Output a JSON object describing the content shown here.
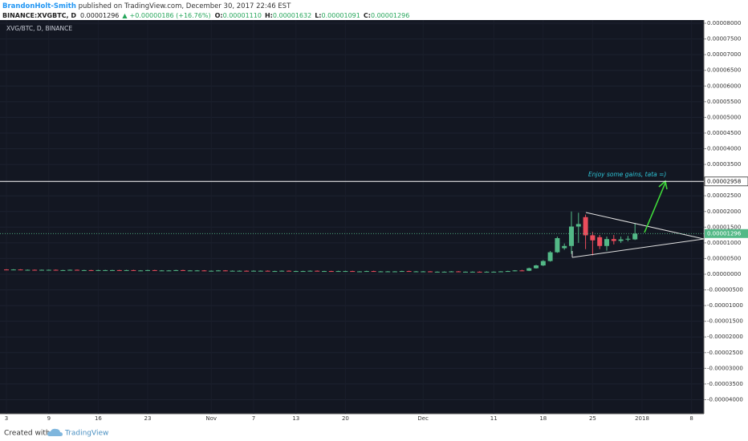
{
  "chart_data": {
    "type": "candlestick",
    "header": {
      "author": "BrandonHolt-Smith",
      "published": " published on TradingView.com, December 30, 2017 22:46 EST",
      "symbol": "BINANCE:XVGBTC, D",
      "price": "0.00001296",
      "change": "+0.00000186 (+16.76%)",
      "open_label": "O:",
      "open": "0.00001110",
      "high_label": "H:",
      "high": "0.00001632",
      "low_label": "L:",
      "low": "0.00001091",
      "close_label": "C:",
      "close": "0.00001296"
    },
    "legend": "XVG/BTC, D, BINANCE",
    "annotation": "Enjoy some gains, tata =)",
    "footer": {
      "created": "Created with",
      "brand": "TradingView"
    },
    "up_color": "#53b987",
    "down_color": "#eb4d5c",
    "grid": true,
    "ylim": [
      -4.448e-05,
      8.103e-05
    ],
    "yticks": [
      {
        "value": 8e-05,
        "label": "0.00008000"
      },
      {
        "value": 7.5e-05,
        "label": "0.00007500"
      },
      {
        "value": 7e-05,
        "label": "0.00007000"
      },
      {
        "value": 6.5e-05,
        "label": "0.00006500"
      },
      {
        "value": 6e-05,
        "label": "0.00006000"
      },
      {
        "value": 5.5e-05,
        "label": "0.00005500"
      },
      {
        "value": 5e-05,
        "label": "0.00005000"
      },
      {
        "value": 4.5e-05,
        "label": "0.00004500"
      },
      {
        "value": 4e-05,
        "label": "0.00004000"
      },
      {
        "value": 3.5e-05,
        "label": "0.00003500"
      },
      {
        "value": 2.5e-05,
        "label": "0.00002500"
      },
      {
        "value": 2e-05,
        "label": "0.00002000"
      },
      {
        "value": 1.5e-05,
        "label": "0.00001500"
      },
      {
        "value": 1e-05,
        "label": "0.00001000"
      },
      {
        "value": 5e-06,
        "label": "0.00000500"
      },
      {
        "value": 0,
        "label": "0.00000000"
      },
      {
        "value": -5e-06,
        "label": "-0.00000500"
      },
      {
        "value": -1e-05,
        "label": "-0.00001000"
      },
      {
        "value": -1.5e-05,
        "label": "-0.00001500"
      },
      {
        "value": -2e-05,
        "label": "-0.00002000"
      },
      {
        "value": -2.5e-05,
        "label": "-0.00002500"
      },
      {
        "value": -3e-05,
        "label": "-0.00003000"
      },
      {
        "value": -3.5e-05,
        "label": "-0.00003500"
      },
      {
        "value": -4e-05,
        "label": "-0.00004000"
      }
    ],
    "hline": {
      "value": 2.958e-05,
      "label": "0.00002958"
    },
    "categories": [
      "3",
      null,
      null,
      null,
      null,
      null,
      "9",
      null,
      null,
      null,
      null,
      null,
      null,
      "16",
      null,
      null,
      null,
      null,
      null,
      null,
      "23",
      null,
      null,
      null,
      null,
      null,
      null,
      null,
      null,
      "Nov",
      null,
      null,
      null,
      null,
      null,
      "7",
      null,
      null,
      null,
      null,
      null,
      "13",
      null,
      null,
      null,
      null,
      null,
      null,
      "20",
      null,
      null,
      null,
      null,
      null,
      null,
      null,
      null,
      null,
      null,
      "Dec",
      null,
      null,
      null,
      null,
      null,
      null,
      null,
      null,
      null,
      "11",
      null,
      null,
      null,
      null,
      null,
      null,
      "18",
      null,
      null,
      null,
      null,
      null,
      null,
      "25",
      null,
      null,
      null,
      null,
      null,
      null,
      "2018",
      null,
      null,
      null,
      null,
      null,
      null,
      "8",
      null
    ],
    "candles": [
      [
        1.5e-06,
        1.6e-06,
        1.3e-06,
        1.4e-06
      ],
      [
        1.4e-06,
        1.6e-06,
        1.3e-06,
        1.5e-06
      ],
      [
        1.5e-06,
        1.6e-06,
        1.3e-06,
        1.4e-06
      ],
      [
        1.4e-06,
        1.5e-06,
        1.3e-06,
        1.4e-06
      ],
      [
        1.4e-06,
        1.5e-06,
        1.2e-06,
        1.3e-06
      ],
      [
        1.3e-06,
        1.5e-06,
        1.2e-06,
        1.4e-06
      ],
      [
        1.4e-06,
        1.5e-06,
        1.3e-06,
        1.4e-06
      ],
      [
        1.4e-06,
        1.5e-06,
        1.2e-06,
        1.3e-06
      ],
      [
        1.3e-06,
        1.4e-06,
        1.2e-06,
        1.3e-06
      ],
      [
        1.3e-06,
        1.5e-06,
        1.2e-06,
        1.4e-06
      ],
      [
        1.4e-06,
        1.5e-06,
        1.2e-06,
        1.3e-06
      ],
      [
        1.3e-06,
        1.4e-06,
        1.2e-06,
        1.3e-06
      ],
      [
        1.3e-06,
        1.4e-06,
        1.1e-06,
        1.2e-06
      ],
      [
        1.2e-06,
        1.4e-06,
        1.1e-06,
        1.3e-06
      ],
      [
        1.3e-06,
        1.4e-06,
        1.2e-06,
        1.3e-06
      ],
      [
        1.3e-06,
        1.4e-06,
        1.2e-06,
        1.3e-06
      ],
      [
        1.3e-06,
        1.4e-06,
        1.1e-06,
        1.2e-06
      ],
      [
        1.2e-06,
        1.4e-06,
        1.1e-06,
        1.3e-06
      ],
      [
        1.3e-06,
        1.4e-06,
        1.1e-06,
        1.2e-06
      ],
      [
        1.2e-06,
        1.3e-06,
        1.1e-06,
        1.2e-06
      ],
      [
        1.2e-06,
        1.4e-06,
        1.1e-06,
        1.3e-06
      ],
      [
        1.3e-06,
        1.4e-06,
        1.1e-06,
        1.2e-06
      ],
      [
        1.2e-06,
        1.3e-06,
        1.1e-06,
        1.2e-06
      ],
      [
        1.2e-06,
        1.3e-06,
        1.1e-06,
        1.2e-06
      ],
      [
        1.2e-06,
        1.4e-06,
        1.1e-06,
        1.3e-06
      ],
      [
        1.3e-06,
        1.4e-06,
        1.1e-06,
        1.2e-06
      ],
      [
        1.2e-06,
        1.3e-06,
        1.1e-06,
        1.2e-06
      ],
      [
        1.2e-06,
        1.3e-06,
        1.1e-06,
        1.2e-06
      ],
      [
        1.2e-06,
        1.3e-06,
        1e-06,
        1.1e-06
      ],
      [
        1.1e-06,
        1.2e-06,
        1e-06,
        1.1e-06
      ],
      [
        1.1e-06,
        1.3e-06,
        1e-06,
        1.2e-06
      ],
      [
        1.2e-06,
        1.3e-06,
        1e-06,
        1.1e-06
      ],
      [
        1.1e-06,
        1.2e-06,
        1e-06,
        1.1e-06
      ],
      [
        1.1e-06,
        1.2e-06,
        1e-06,
        1.1e-06
      ],
      [
        1.1e-06,
        1.2e-06,
        9e-07,
        1e-06
      ],
      [
        1e-06,
        1.2e-06,
        9e-07,
        1.1e-06
      ],
      [
        1.1e-06,
        1.2e-06,
        1e-06,
        1.1e-06
      ],
      [
        1.1e-06,
        1.2e-06,
        9e-07,
        1e-06
      ],
      [
        1e-06,
        1.1e-06,
        9e-07,
        1e-06
      ],
      [
        1e-06,
        1.2e-06,
        9e-07,
        1.1e-06
      ],
      [
        1.1e-06,
        1.2e-06,
        9e-07,
        1e-06
      ],
      [
        1e-06,
        1.1e-06,
        9e-07,
        1e-06
      ],
      [
        1e-06,
        1.1e-06,
        9e-07,
        1e-06
      ],
      [
        1e-06,
        1.2e-06,
        9e-07,
        1.1e-06
      ],
      [
        1.1e-06,
        1.2e-06,
        9e-07,
        1e-06
      ],
      [
        1e-06,
        1.1e-06,
        9e-07,
        1e-06
      ],
      [
        1e-06,
        1.1e-06,
        8e-07,
        9e-07
      ],
      [
        9e-07,
        1.1e-06,
        8e-07,
        1e-06
      ],
      [
        1e-06,
        1.1e-06,
        9e-07,
        1e-06
      ],
      [
        1e-06,
        1.1e-06,
        8e-07,
        9e-07
      ],
      [
        9e-07,
        1e-06,
        8e-07,
        9e-07
      ],
      [
        9e-07,
        1.1e-06,
        8e-07,
        1e-06
      ],
      [
        1e-06,
        1.1e-06,
        8e-07,
        9e-07
      ],
      [
        9e-07,
        1e-06,
        8e-07,
        9e-07
      ],
      [
        9e-07,
        1e-06,
        8e-07,
        9e-07
      ],
      [
        9e-07,
        1e-06,
        8e-07,
        9e-07
      ],
      [
        9e-07,
        1.1e-06,
        8e-07,
        1e-06
      ],
      [
        1e-06,
        1.1e-06,
        8e-07,
        9e-07
      ],
      [
        9e-07,
        1e-06,
        8e-07,
        9e-07
      ],
      [
        9e-07,
        1e-06,
        8e-07,
        9e-07
      ],
      [
        9e-07,
        1e-06,
        7e-07,
        8e-07
      ],
      [
        8e-07,
        9e-07,
        7e-07,
        8e-07
      ],
      [
        8e-07,
        9e-07,
        7e-07,
        8e-07
      ],
      [
        8e-07,
        1e-06,
        7e-07,
        9e-07
      ],
      [
        9e-07,
        1e-06,
        7e-07,
        8e-07
      ],
      [
        8e-07,
        9e-07,
        7e-07,
        8e-07
      ],
      [
        8e-07,
        9e-07,
        7e-07,
        8e-07
      ],
      [
        8e-07,
        9e-07,
        6e-07,
        7e-07
      ],
      [
        7e-07,
        9e-07,
        6e-07,
        8e-07
      ],
      [
        8e-07,
        9e-07,
        7e-07,
        8e-07
      ],
      [
        8e-07,
        1e-06,
        7e-07,
        9e-07
      ],
      [
        9e-07,
        1.1e-06,
        8e-07,
        1e-06
      ],
      [
        1e-06,
        1.3e-06,
        9e-07,
        1.2e-06
      ],
      [
        1.2e-06,
        1.4e-06,
        1e-06,
        1.1e-06
      ],
      [
        1.1e-06,
        2.1e-06,
        1e-06,
        1.9e-06
      ],
      [
        1.9e-06,
        3e-06,
        1.8e-06,
        2.8e-06
      ],
      [
        2.8e-06,
        4.5e-06,
        2.6e-06,
        4.2e-06
      ],
      [
        4.2e-06,
        7.4e-06,
        4e-06,
        7e-06
      ],
      [
        7e-06,
        1.2e-05,
        6.8e-06,
        1.15e-05
      ],
      [
        8.3e-06,
        9.8e-06,
        7.8e-06,
        9e-06
      ],
      [
        9e-06,
        2e-05,
        6.5e-06,
        1.52e-05
      ],
      [
        1.52e-05,
        1.96e-05,
        1e-05,
        1.6e-05
      ],
      [
        1.82e-05,
        1.9e-05,
        8e-06,
        1.24e-05
      ],
      [
        1.24e-05,
        1.35e-05,
        6e-06,
        1.08e-05
      ],
      [
        1.18e-05,
        1.25e-05,
        8e-06,
        9e-06
      ],
      [
        9e-06,
        1.2e-05,
        7.5e-06,
        1.12e-05
      ],
      [
        1.12e-05,
        1.25e-05,
        9.5e-06,
        1.06e-05
      ],
      [
        1.06e-05,
        1.2e-05,
        1e-05,
        1.11e-05
      ],
      [
        1.11e-05,
        1.22e-05,
        1.05e-05,
        1.13e-05
      ],
      [
        1.11e-05,
        1.632e-05,
        1.091e-05,
        1.296e-05
      ],
      null,
      null,
      null,
      null,
      null,
      null,
      null,
      null,
      null
    ]
  }
}
